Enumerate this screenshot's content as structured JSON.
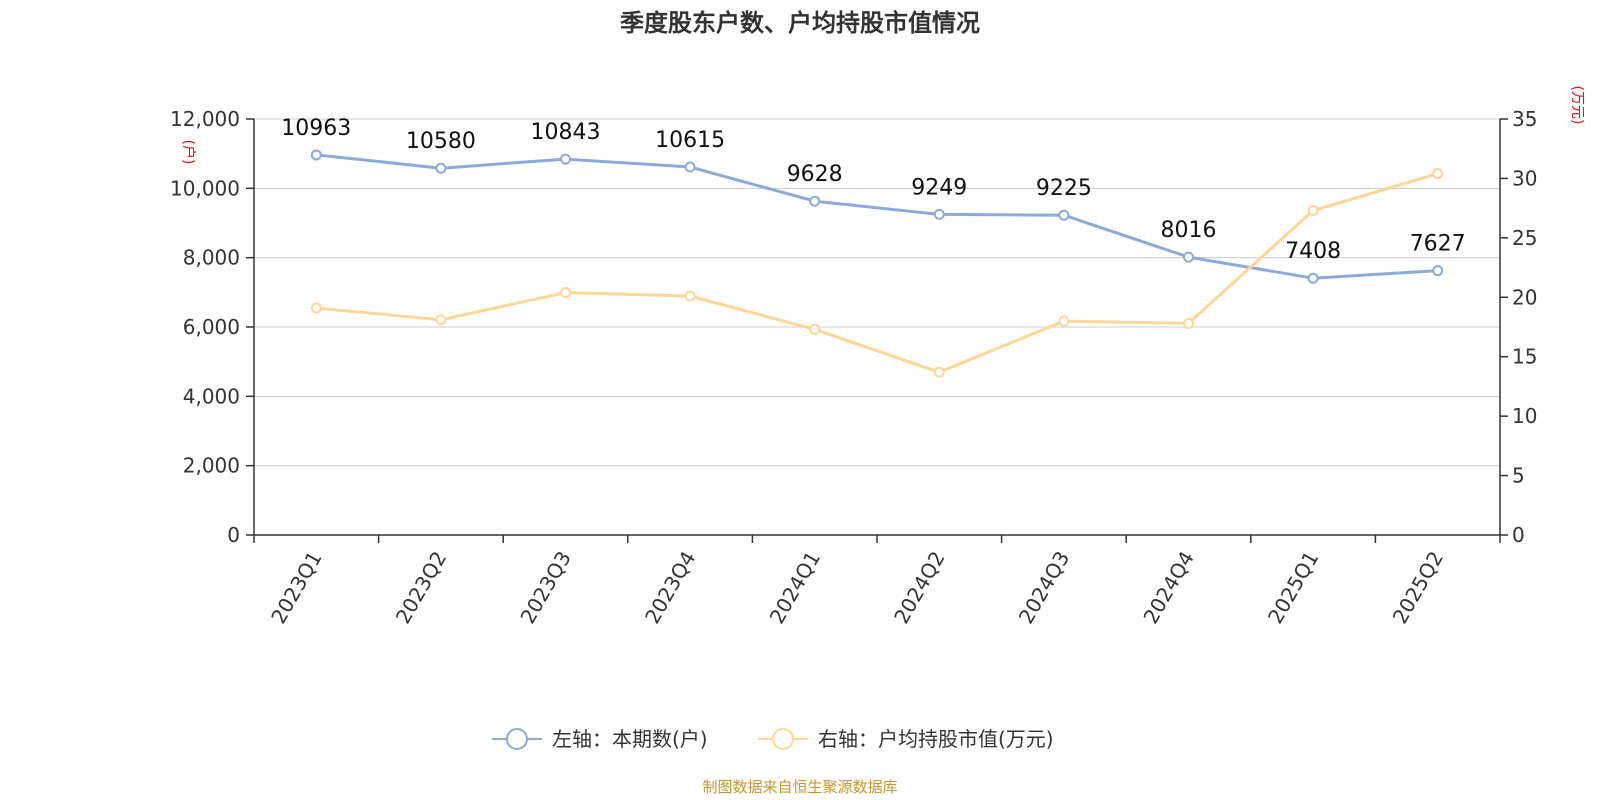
{
  "chart_data": {
    "type": "line",
    "title": "季度股东户数、户均持股市值情况",
    "categories": [
      "2023Q1",
      "2023Q2",
      "2023Q3",
      "2023Q4",
      "2024Q1",
      "2024Q2",
      "2024Q3",
      "2024Q4",
      "2025Q1",
      "2025Q2"
    ],
    "series": [
      {
        "name": "左轴：本期数(户)",
        "axis": "left",
        "color": "#8eaadb",
        "values": [
          10963,
          10580,
          10843,
          10615,
          9628,
          9249,
          9225,
          8016,
          7408,
          7627
        ],
        "data_labels": [
          "10963",
          "10580",
          "10843",
          "10615",
          "9628",
          "9249",
          "9225",
          "8016",
          "7408",
          "7627"
        ]
      },
      {
        "name": "右轴：户均持股市值(万元)",
        "axis": "right",
        "color": "#fdd795",
        "values": [
          19.1,
          18.1,
          20.4,
          20.1,
          17.3,
          13.7,
          18.0,
          17.8,
          27.3,
          30.4
        ]
      }
    ],
    "y_left": {
      "unit": "(户)",
      "ylim": [
        0,
        12000
      ],
      "ticks": [
        0,
        2000,
        4000,
        6000,
        8000,
        10000,
        12000
      ],
      "tick_labels": [
        "0",
        "2,000",
        "4,000",
        "6,000",
        "8,000",
        "10,000",
        "12,000"
      ]
    },
    "y_right": {
      "unit": "(万元)",
      "ylim": [
        0,
        35
      ],
      "ticks": [
        0,
        5,
        10,
        15,
        20,
        25,
        30,
        35
      ],
      "tick_labels": [
        "0",
        "5",
        "10",
        "15",
        "20",
        "25",
        "30",
        "35"
      ]
    },
    "grid": true,
    "legend_position": "bottom-center",
    "source": "制图数据来自恒生聚源数据库"
  }
}
